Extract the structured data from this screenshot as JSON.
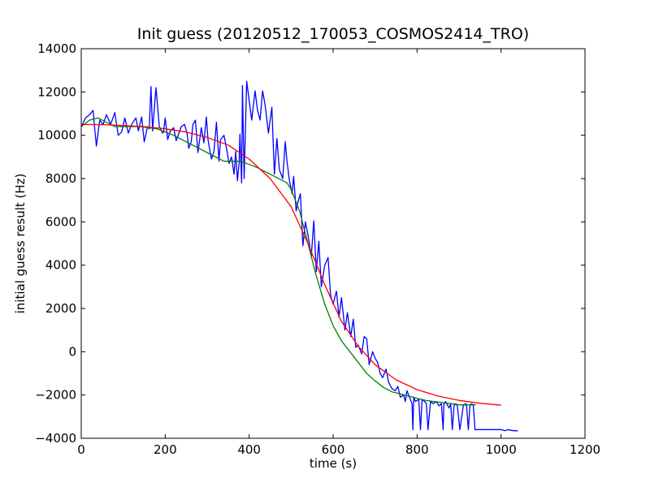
{
  "chart_data": {
    "type": "line",
    "title": "Init guess (20120512_170053_COSMOS2414_TRO)",
    "xlabel": "time (s)",
    "ylabel": "initial guess result (Hz)",
    "xlim": [
      0,
      1200
    ],
    "ylim": [
      -4000,
      14000
    ],
    "xticks": [
      0,
      200,
      400,
      600,
      800,
      1000,
      1200
    ],
    "yticks": [
      -4000,
      -2000,
      0,
      2000,
      4000,
      6000,
      8000,
      10000,
      12000,
      14000
    ],
    "grid": false,
    "legend": "none",
    "series": [
      {
        "color": "#0000ff",
        "x": [
          0,
          10,
          20,
          28,
          36,
          44,
          52,
          60,
          70,
          80,
          88,
          96,
          104,
          112,
          120,
          130,
          136,
          144,
          150,
          158,
          162,
          166,
          170,
          178,
          186,
          194,
          196,
          200,
          206,
          212,
          220,
          226,
          230,
          238,
          246,
          252,
          256,
          262,
          266,
          272,
          278,
          286,
          292,
          298,
          302,
          310,
          316,
          322,
          328,
          332,
          340,
          346,
          352,
          358,
          364,
          368,
          372,
          376,
          378,
          382,
          384,
          388,
          394,
          400,
          406,
          414,
          420,
          426,
          432,
          438,
          446,
          454,
          460,
          466,
          472,
          480,
          486,
          490,
          496,
          502,
          506,
          512,
          516,
          522,
          528,
          534,
          540,
          548,
          554,
          560,
          566,
          572,
          580,
          588,
          594,
          600,
          608,
          614,
          620,
          628,
          634,
          642,
          648,
          654,
          660,
          668,
          674,
          680,
          686,
          694,
          700,
          706,
          712,
          718,
          726,
          732,
          740,
          748,
          754,
          760,
          768,
          772,
          776,
          782,
          788,
          790,
          792,
          796,
          804,
          808,
          812,
          818,
          822,
          826,
          832,
          838,
          846,
          852,
          858,
          862,
          864,
          868,
          876,
          880,
          884,
          888,
          892,
          896,
          902,
          910,
          916,
          918,
          922,
          926,
          930,
          934,
          938,
          950,
          980,
          1000,
          1010,
          1016,
          1030,
          1040
        ],
        "y": [
          10400,
          10800,
          10950,
          11150,
          9500,
          10700,
          10500,
          10950,
          10500,
          11050,
          10000,
          10150,
          10800,
          10100,
          10500,
          10800,
          10200,
          10850,
          9700,
          10400,
          10300,
          12250,
          10200,
          12200,
          10400,
          10100,
          10150,
          10800,
          9800,
          10200,
          10350,
          9750,
          9950,
          10400,
          10500,
          10100,
          9400,
          9700,
          10500,
          10700,
          9200,
          10350,
          9650,
          10850,
          9800,
          8900,
          9250,
          10600,
          8800,
          9800,
          10000,
          9400,
          8700,
          9000,
          8200,
          9250,
          7900,
          8700,
          10050,
          7800,
          12300,
          8000,
          12500,
          11600,
          10700,
          12050,
          11150,
          10700,
          12050,
          11400,
          10100,
          11300,
          8200,
          9850,
          8400,
          8000,
          9700,
          8800,
          7900,
          7300,
          8100,
          6500,
          6900,
          7300,
          4900,
          6000,
          5400,
          4400,
          6050,
          3700,
          5100,
          3000,
          4000,
          4350,
          2600,
          2200,
          2800,
          1600,
          2500,
          1000,
          1800,
          700,
          1500,
          200,
          300,
          -100,
          700,
          600,
          -600,
          0,
          -300,
          -500,
          -1000,
          -1200,
          -800,
          -1400,
          -1700,
          -1800,
          -1600,
          -2100,
          -2000,
          -2300,
          -1800,
          -2100,
          -2400,
          -3600,
          -2100,
          -2300,
          -2200,
          -3600,
          -2200,
          -2300,
          -2400,
          -3600,
          -2300,
          -2400,
          -2300,
          -2500,
          -2400,
          -3600,
          -2400,
          -2300,
          -2600,
          -2400,
          -3600,
          -2500,
          -2400,
          -2500,
          -3600,
          -2500,
          -2400,
          -2500,
          -3600,
          -2500,
          -2400,
          -2500,
          -3600,
          -3600,
          -3600,
          -3600,
          -3650,
          -3600,
          -3650,
          -3650
        ]
      },
      {
        "color": "#008000",
        "x": [
          0,
          20,
          40,
          60,
          80,
          100,
          140,
          180,
          220,
          260,
          300,
          340,
          380,
          420,
          460,
          490,
          500,
          520,
          540,
          560,
          580,
          600,
          620,
          640,
          660,
          680,
          700,
          720,
          740,
          760,
          780,
          800,
          820,
          840,
          860,
          880,
          900,
          920,
          940
        ],
        "y": [
          10400,
          10700,
          10800,
          10600,
          10400,
          10400,
          10400,
          10300,
          10000,
          9600,
          9200,
          8800,
          8800,
          8500,
          8100,
          7800,
          7500,
          6500,
          5000,
          3500,
          2200,
          1200,
          500,
          0,
          -500,
          -1000,
          -1350,
          -1650,
          -1850,
          -1950,
          -2050,
          -2150,
          -2250,
          -2300,
          -2350,
          -2400,
          -2450,
          -2450,
          -2450
        ]
      },
      {
        "color": "#ff0000",
        "x": [
          0,
          50,
          100,
          150,
          200,
          250,
          300,
          350,
          400,
          450,
          500,
          540,
          580,
          620,
          660,
          700,
          750,
          800,
          850,
          900,
          950,
          1000
        ],
        "y": [
          10500,
          10490,
          10450,
          10400,
          10300,
          10150,
          9900,
          9550,
          8900,
          8000,
          6700,
          5000,
          3100,
          1400,
          250,
          -600,
          -1300,
          -1750,
          -2050,
          -2250,
          -2380,
          -2470
        ]
      }
    ]
  }
}
